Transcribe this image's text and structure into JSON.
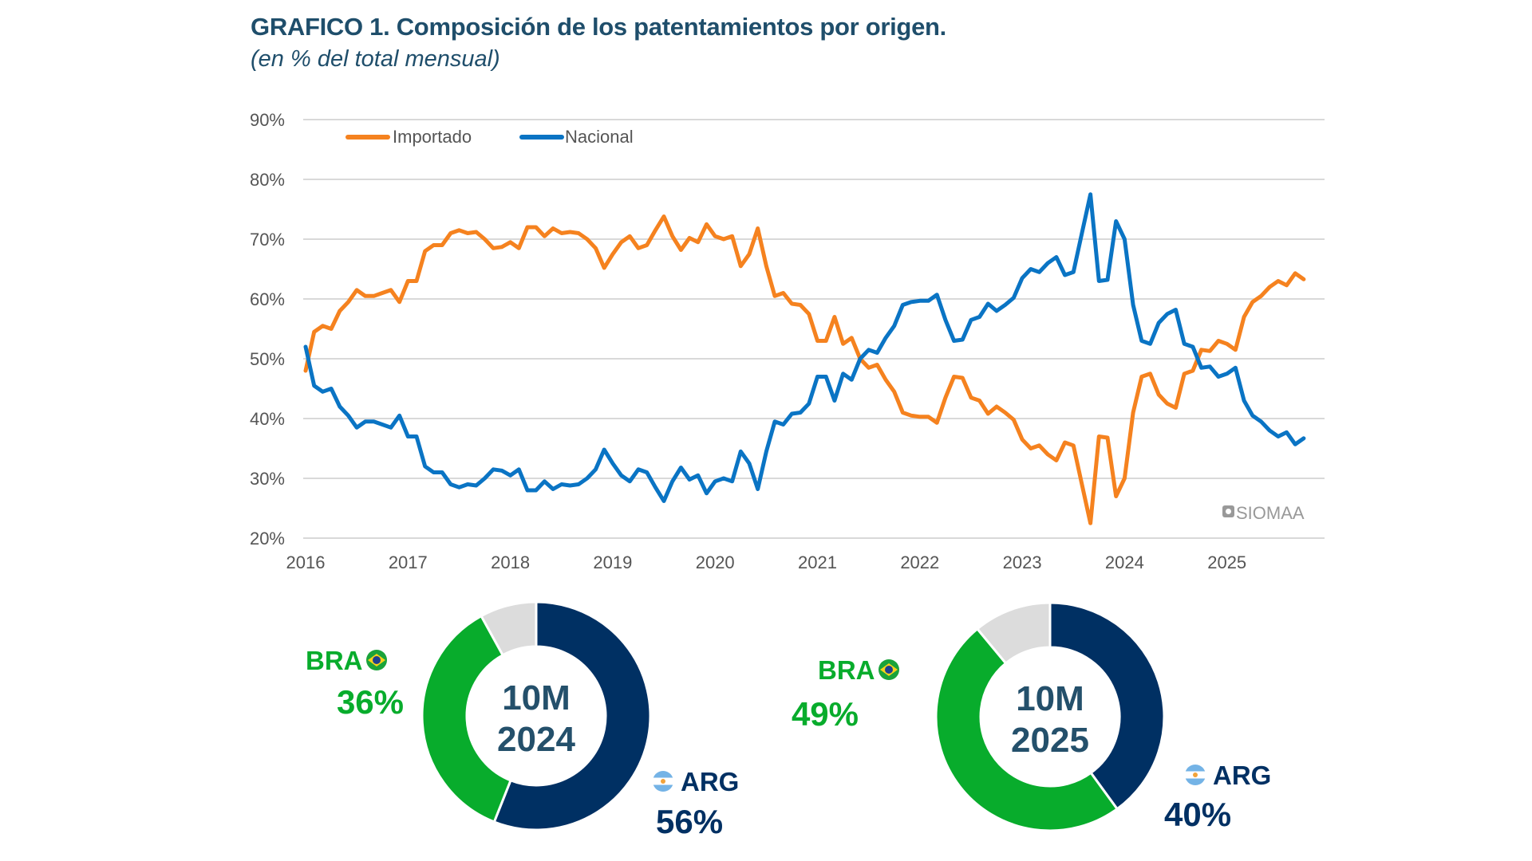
{
  "title": "GRAFICO 1. Composición de los patentamientos por origen.",
  "subtitle": "(en % del total mensual)",
  "watermark": "SIOMAA",
  "colors": {
    "importado": "#f5821f",
    "nacional": "#0a74c4",
    "arg": "#003063",
    "bra": "#08ac2c",
    "other": "#dcdcdc",
    "center_text": "#24506b",
    "title": "#1f4e6b"
  },
  "chart_data": [
    {
      "type": "line",
      "title": "GRAFICO 1. Composición de los patentamientos por origen.",
      "subtitle": "(en % del total mensual)",
      "frequency": "monthly",
      "x_start": "2016-01",
      "x_end": "2025-10",
      "x_ticks": [
        "2016",
        "2017",
        "2018",
        "2019",
        "2020",
        "2021",
        "2022",
        "2023",
        "2024",
        "2025"
      ],
      "y_ticks": [
        "20%",
        "30%",
        "40%",
        "50%",
        "60%",
        "70%",
        "80%",
        "90%"
      ],
      "ylim": [
        20,
        90
      ],
      "grid": true,
      "legend": "top-left",
      "series": [
        {
          "name": "Importado",
          "color": "#f5821f",
          "values": [
            48,
            54.5,
            55.5,
            55,
            58,
            59.5,
            61.5,
            60.5,
            60.5,
            61,
            61.5,
            59.5,
            63,
            63,
            68,
            69,
            69,
            71,
            71.5,
            71,
            71.2,
            70,
            68.5,
            68.7,
            69.5,
            68.5,
            72,
            72,
            70.5,
            71.8,
            71,
            71.2,
            71,
            70,
            68.5,
            65.2,
            67.5,
            69.5,
            70.5,
            68.5,
            69,
            71.5,
            73.8,
            70.5,
            68.2,
            70.2,
            69.5,
            72.5,
            70.5,
            70,
            70.5,
            65.5,
            67.5,
            71.8,
            65.5,
            60.5,
            61,
            59.2,
            59,
            57.5,
            53,
            53,
            57,
            52.5,
            53.5,
            50,
            48.5,
            49,
            46.5,
            44.5,
            41,
            40.5,
            40.3,
            40.3,
            39.3,
            43.5,
            47,
            46.8,
            43.5,
            43,
            40.8,
            42,
            41,
            39.8,
            36.5,
            35,
            35.5,
            34,
            33,
            36,
            35.5,
            29,
            22.5,
            37,
            36.8,
            27,
            30,
            41,
            47,
            47.5,
            44,
            42.5,
            41.8,
            47.5,
            48,
            51.5,
            51.3,
            53,
            52.5,
            51.5,
            57,
            59.5,
            60.5,
            62,
            63,
            62.3,
            64.3,
            63.3
          ]
        },
        {
          "name": "Nacional",
          "color": "#0a74c4",
          "values": [
            52,
            45.5,
            44.5,
            45,
            42,
            40.5,
            38.5,
            39.5,
            39.5,
            39,
            38.5,
            40.5,
            37,
            37,
            32,
            31,
            31,
            29,
            28.5,
            29,
            28.8,
            30,
            31.5,
            31.3,
            30.5,
            31.5,
            28,
            28,
            29.5,
            28.2,
            29,
            28.8,
            29,
            30,
            31.5,
            34.8,
            32.5,
            30.5,
            29.5,
            31.5,
            31,
            28.5,
            26.2,
            29.5,
            31.8,
            29.8,
            30.5,
            27.5,
            29.5,
            30,
            29.5,
            34.5,
            32.5,
            28.2,
            34.5,
            39.5,
            39,
            40.8,
            41,
            42.5,
            47,
            47,
            43,
            47.5,
            46.5,
            50,
            51.5,
            51,
            53.5,
            55.5,
            59,
            59.5,
            59.7,
            59.7,
            60.7,
            56.5,
            53,
            53.2,
            56.5,
            57,
            59.2,
            58,
            59,
            60.2,
            63.5,
            65,
            64.5,
            66,
            67,
            64,
            64.5,
            71,
            77.5,
            63,
            63.2,
            73,
            70,
            59,
            53,
            52.5,
            56,
            57.5,
            58.2,
            52.5,
            52,
            48.5,
            48.7,
            47,
            47.5,
            48.5,
            43,
            40.5,
            39.5,
            38,
            37,
            37.7,
            35.7,
            36.7
          ]
        }
      ]
    },
    {
      "type": "pie",
      "center_label": [
        "10M",
        "2024"
      ],
      "slices": [
        {
          "label": "ARG",
          "value": 56,
          "value_label": "56%",
          "color": "#003063"
        },
        {
          "label": "BRA",
          "value": 36,
          "value_label": "36%",
          "color": "#08ac2c"
        },
        {
          "label": "",
          "value": 8,
          "color": "#dcdcdc"
        }
      ]
    },
    {
      "type": "pie",
      "center_label": [
        "10M",
        "2025"
      ],
      "slices": [
        {
          "label": "ARG",
          "value": 40,
          "value_label": "40%",
          "color": "#003063"
        },
        {
          "label": "BRA",
          "value": 49,
          "value_label": "49%",
          "color": "#08ac2c"
        },
        {
          "label": "",
          "value": 11,
          "color": "#dcdcdc"
        }
      ]
    }
  ]
}
